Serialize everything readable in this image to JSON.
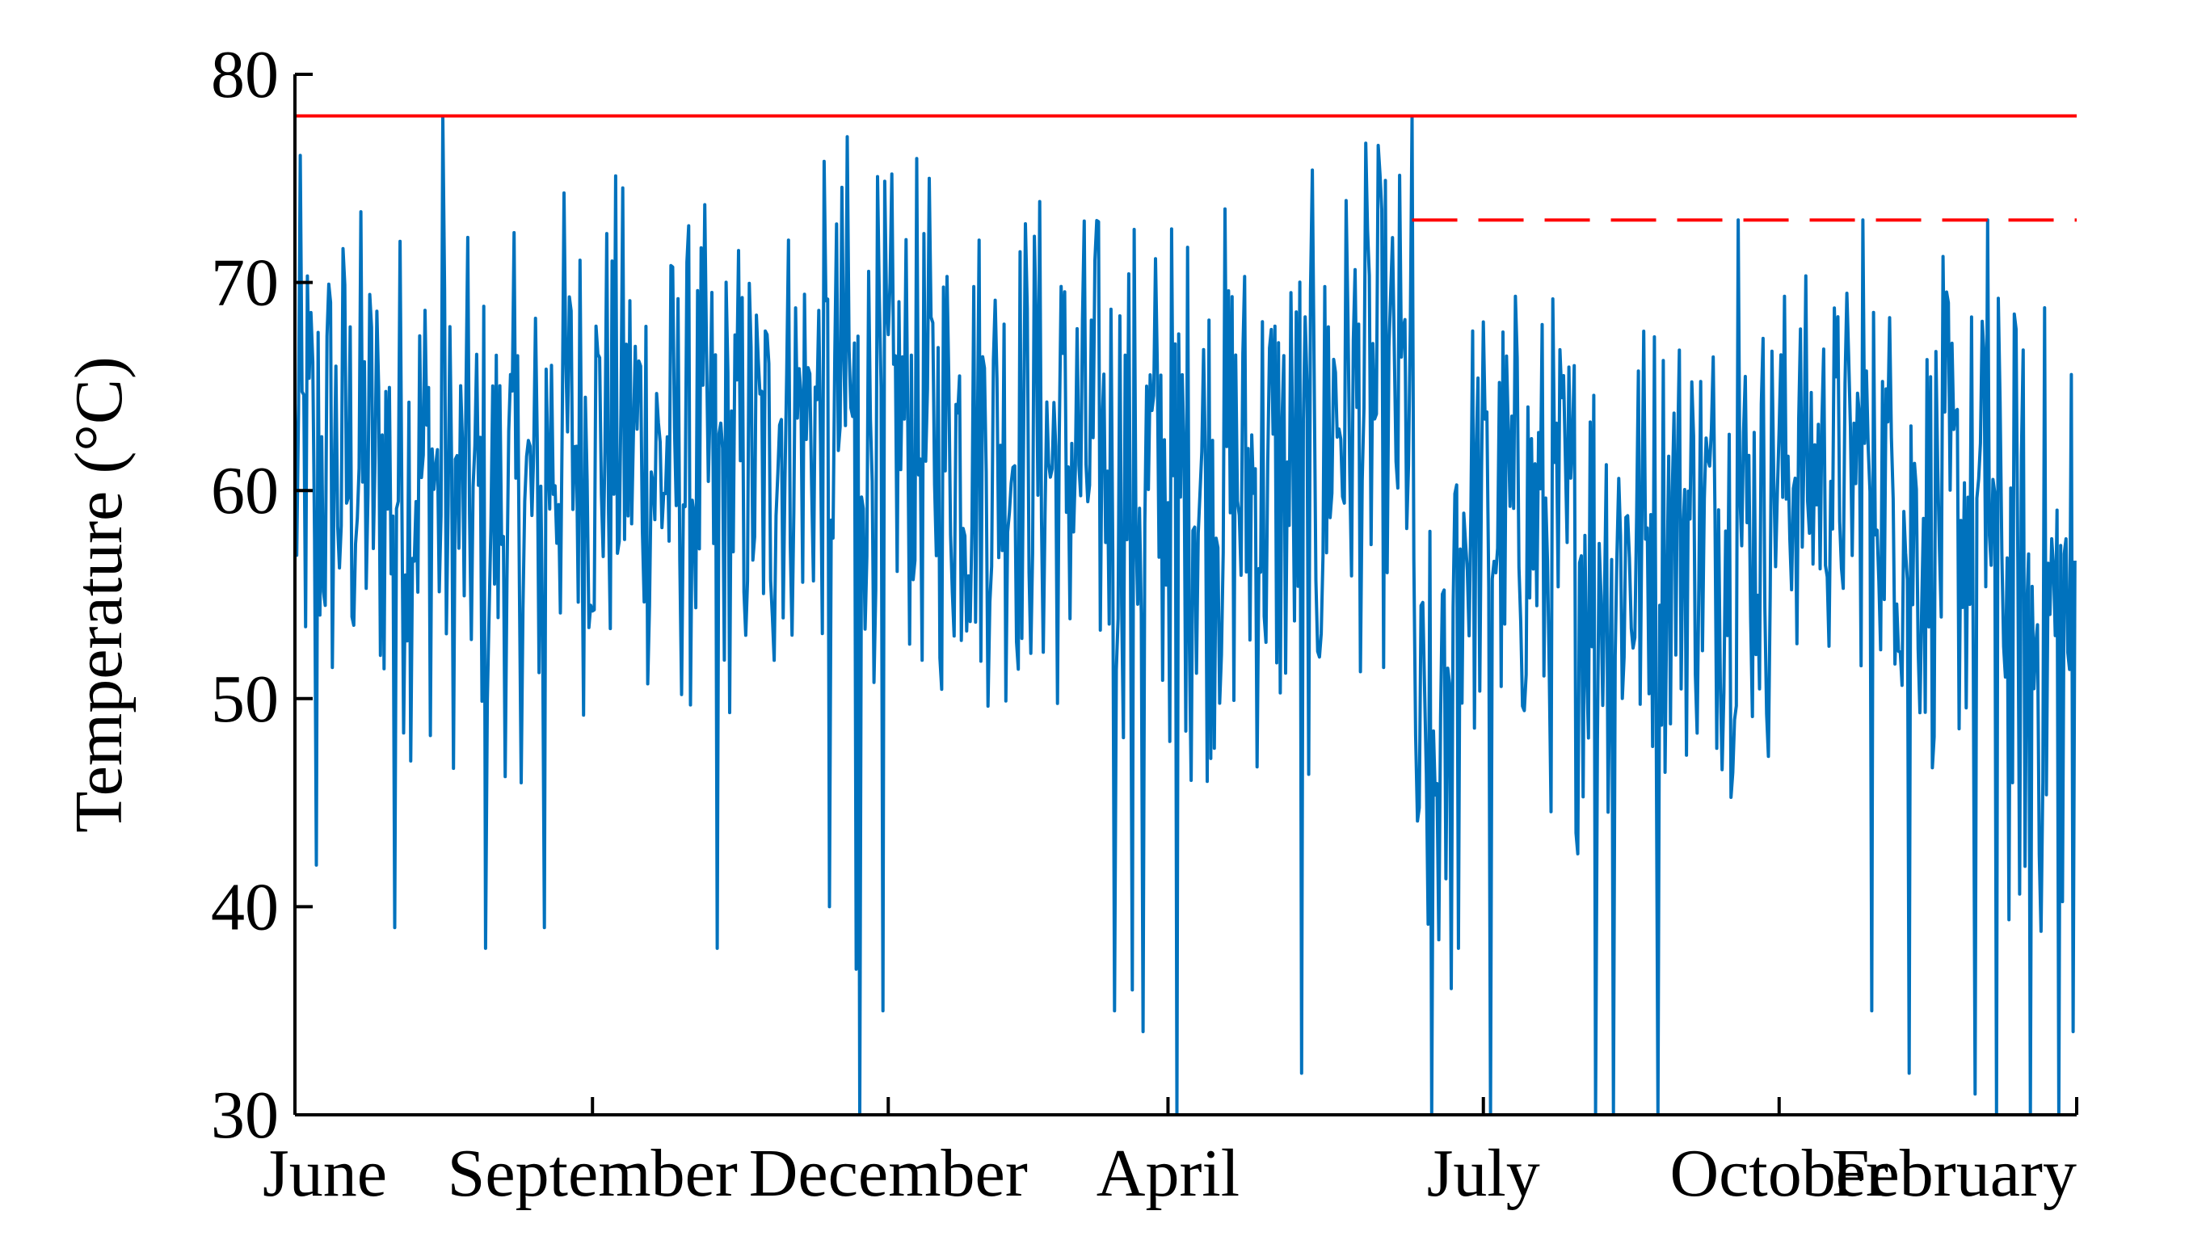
{
  "chart_data": {
    "type": "line",
    "title": "",
    "xlabel": "",
    "ylabel": "Temperature (°C)",
    "ylim": [
      30,
      80
    ],
    "yticks": [
      30,
      40,
      50,
      60,
      70,
      80
    ],
    "xlim": [
      0,
      1000
    ],
    "x_tick_labels": [
      "June",
      "September",
      "December",
      "April",
      "July",
      "October",
      "February"
    ],
    "x_tick_positions": [
      0,
      167,
      333,
      490,
      667,
      833,
      1000
    ],
    "grid": false,
    "legend": "none",
    "colors": {
      "series": "#0072BD",
      "threshold": "#FF0000",
      "axis": "#000000"
    },
    "reference_lines": [
      {
        "style": "solid",
        "y": 78,
        "x_range": [
          0,
          1000
        ]
      },
      {
        "style": "dashed",
        "y": 73,
        "x_range": [
          627,
          1000
        ]
      }
    ],
    "series": [
      {
        "x_step": 1,
        "envelope": [
          {
            "x_start": 0,
            "x_end": 30,
            "low": 45,
            "high": 77
          },
          {
            "x_start": 30,
            "x_end": 80,
            "low": 46,
            "high": 76
          },
          {
            "x_start": 80,
            "x_end": 140,
            "low": 45,
            "high": 73
          },
          {
            "x_start": 140,
            "x_end": 200,
            "low": 48,
            "high": 77
          },
          {
            "x_start": 200,
            "x_end": 270,
            "low": 47,
            "high": 75
          },
          {
            "x_start": 270,
            "x_end": 350,
            "low": 50,
            "high": 77
          },
          {
            "x_start": 350,
            "x_end": 420,
            "low": 48,
            "high": 77
          },
          {
            "x_start": 420,
            "x_end": 470,
            "low": 47,
            "high": 76
          },
          {
            "x_start": 470,
            "x_end": 530,
            "low": 45,
            "high": 76
          },
          {
            "x_start": 530,
            "x_end": 580,
            "low": 44,
            "high": 76
          },
          {
            "x_start": 580,
            "x_end": 627,
            "low": 50,
            "high": 78
          },
          {
            "x_start": 627,
            "x_end": 650,
            "low": 32,
            "high": 60
          },
          {
            "x_start": 650,
            "x_end": 700,
            "low": 45,
            "high": 72
          },
          {
            "x_start": 700,
            "x_end": 760,
            "low": 42,
            "high": 72
          },
          {
            "x_start": 760,
            "x_end": 830,
            "low": 45,
            "high": 72
          },
          {
            "x_start": 830,
            "x_end": 900,
            "low": 50,
            "high": 72
          },
          {
            "x_start": 900,
            "x_end": 960,
            "low": 45,
            "high": 72
          },
          {
            "x_start": 960,
            "x_end": 1000,
            "low": 35,
            "high": 72
          }
        ],
        "dips": [
          {
            "x": 12,
            "y": 42
          },
          {
            "x": 56,
            "y": 39
          },
          {
            "x": 107,
            "y": 38
          },
          {
            "x": 140,
            "y": 39
          },
          {
            "x": 237,
            "y": 38
          },
          {
            "x": 315,
            "y": 37
          },
          {
            "x": 300,
            "y": 40
          },
          {
            "x": 317,
            "y": 30
          },
          {
            "x": 330,
            "y": 35
          },
          {
            "x": 460,
            "y": 35
          },
          {
            "x": 470,
            "y": 36
          },
          {
            "x": 476,
            "y": 34
          },
          {
            "x": 495,
            "y": 30
          },
          {
            "x": 565,
            "y": 32
          },
          {
            "x": 638,
            "y": 30
          },
          {
            "x": 653,
            "y": 38
          },
          {
            "x": 671,
            "y": 30
          },
          {
            "x": 730,
            "y": 30
          },
          {
            "x": 740,
            "y": 30
          },
          {
            "x": 765,
            "y": 30
          },
          {
            "x": 885,
            "y": 35
          },
          {
            "x": 906,
            "y": 32
          },
          {
            "x": 943,
            "y": 31
          },
          {
            "x": 955,
            "y": 30
          },
          {
            "x": 974,
            "y": 30
          },
          {
            "x": 990,
            "y": 30
          },
          {
            "x": 998,
            "y": 34
          }
        ],
        "peaks": [
          {
            "x": 83,
            "y": 78
          },
          {
            "x": 310,
            "y": 77
          },
          {
            "x": 470,
            "y": 77
          },
          {
            "x": 627,
            "y": 78
          },
          {
            "x": 810,
            "y": 73
          },
          {
            "x": 880,
            "y": 73
          },
          {
            "x": 950,
            "y": 73
          }
        ]
      }
    ]
  }
}
